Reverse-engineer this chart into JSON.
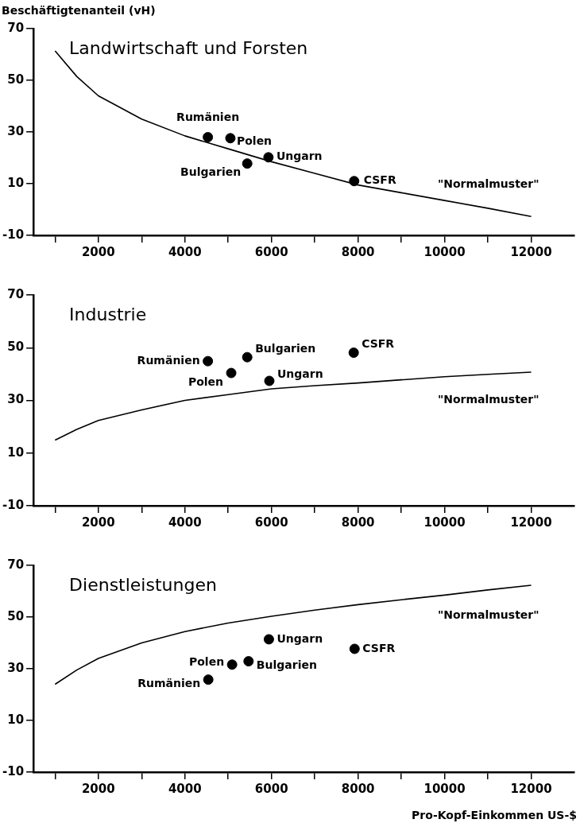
{
  "chart_data": [
    {
      "type": "scatter",
      "title": "Landwirtschaft und Forsten",
      "ylabel": "Beschäftigtenanteil (vH)",
      "xlim": [
        500,
        13000
      ],
      "ylim": [
        -10,
        70
      ],
      "xticks": [
        {
          "value": 1000,
          "label": null
        },
        2000,
        {
          "value": 3000,
          "label": null
        },
        4000,
        {
          "value": 5000,
          "label": null
        },
        6000,
        {
          "value": 7000,
          "label": null
        },
        8000,
        {
          "value": 9000,
          "label": null
        },
        10000,
        {
          "value": 11000,
          "label": null
        },
        12000
      ],
      "yticks": [
        -10,
        10,
        30,
        50,
        70
      ],
      "grid": false,
      "legend": false,
      "series": [
        {
          "name": "\"Normalmuster\"",
          "type": "line",
          "marker": "none",
          "color": "#000000",
          "x": [
            1000,
            1500,
            2000,
            3000,
            4000,
            5000,
            6000,
            7000,
            8000,
            9000,
            10000,
            11000,
            12000
          ],
          "values": [
            61.4,
            51.5,
            44,
            35,
            28.5,
            23.5,
            18.5,
            14,
            9.5,
            6.5,
            3.5,
            0.5,
            -2.7
          ]
        },
        {
          "marker": "circle",
          "color": "#000000",
          "x": [
            4530,
            5050,
            5440,
            5930,
            7910
          ],
          "values": [
            28,
            27.6,
            17.8,
            20.2,
            11
          ]
        }
      ],
      "annotations": [
        {
          "text": "Rumänien",
          "x": 4530,
          "y": 28
        },
        {
          "text": "Polen",
          "x": 5050,
          "y": 27.6
        },
        {
          "text": "Bulgarien",
          "x": 5440,
          "y": 17.8
        },
        {
          "text": "Ungarn",
          "x": 5930,
          "y": 20.2
        },
        {
          "text": "CSFR",
          "x": 7910,
          "y": 11
        }
      ]
    },
    {
      "type": "scatter",
      "title": "Industrie",
      "xlim": [
        500,
        13000
      ],
      "ylim": [
        -10,
        70
      ],
      "xticks": [
        {
          "value": 1000,
          "label": null
        },
        2000,
        {
          "value": 3000,
          "label": null
        },
        4000,
        {
          "value": 5000,
          "label": null
        },
        6000,
        {
          "value": 7000,
          "label": null
        },
        8000,
        {
          "value": 9000,
          "label": null
        },
        10000,
        {
          "value": 11000,
          "label": null
        },
        12000
      ],
      "yticks": [
        -10,
        10,
        30,
        50,
        70
      ],
      "grid": false,
      "legend": false,
      "series": [
        {
          "name": "\"Normalmuster\"",
          "type": "line",
          "marker": "none",
          "color": "#000000",
          "x": [
            1000,
            1500,
            2000,
            3000,
            4000,
            5000,
            6000,
            7000,
            8000,
            9000,
            10000,
            11000,
            12000
          ],
          "values": [
            14.9,
            19,
            22.4,
            26.4,
            30,
            32.2,
            34.4,
            35.6,
            36.6,
            37.8,
            39,
            39.9,
            40.7
          ]
        },
        {
          "marker": "circle",
          "color": "#000000",
          "x": [
            4530,
            5070,
            5440,
            5950,
            7900
          ],
          "values": [
            44.9,
            40.4,
            46.4,
            37.4,
            48.1
          ]
        }
      ],
      "annotations": [
        {
          "text": "Rumänien",
          "x": 4530,
          "y": 44.9
        },
        {
          "text": "Polen",
          "x": 5070,
          "y": 40.4
        },
        {
          "text": "Bulgarien",
          "x": 5440,
          "y": 46.4
        },
        {
          "text": "Ungarn",
          "x": 5950,
          "y": 37.4
        },
        {
          "text": "CSFR",
          "x": 7900,
          "y": 48.1
        }
      ]
    },
    {
      "type": "scatter",
      "title": "Dienstleistungen",
      "xlabel": "Pro-Kopf-Einkommen US-$",
      "xlim": [
        500,
        13000
      ],
      "ylim": [
        -10,
        70
      ],
      "xticks": [
        {
          "value": 1000,
          "label": null
        },
        2000,
        {
          "value": 3000,
          "label": null
        },
        4000,
        {
          "value": 5000,
          "label": null
        },
        6000,
        {
          "value": 7000,
          "label": null
        },
        8000,
        {
          "value": 9000,
          "label": null
        },
        10000,
        {
          "value": 11000,
          "label": null
        },
        12000
      ],
      "yticks": [
        -10,
        10,
        30,
        50,
        70
      ],
      "grid": false,
      "legend": false,
      "series": [
        {
          "name": "\"Normalmuster\"",
          "type": "line",
          "marker": "none",
          "color": "#000000",
          "x": [
            1000,
            1500,
            2000,
            3000,
            4000,
            5000,
            6000,
            7000,
            8000,
            9000,
            10000,
            11000,
            12000
          ],
          "values": [
            24,
            29.5,
            34,
            40,
            44.4,
            47.7,
            50.3,
            52.7,
            54.8,
            56.7,
            58.5,
            60.5,
            62.3
          ]
        },
        {
          "marker": "circle",
          "color": "#000000",
          "x": [
            4540,
            5090,
            5470,
            5940,
            7920
          ],
          "values": [
            25.8,
            31.6,
            32.9,
            41.4,
            37.7
          ]
        }
      ],
      "annotations": [
        {
          "text": "Rumänien",
          "x": 4540,
          "y": 25.8
        },
        {
          "text": "Polen",
          "x": 5090,
          "y": 31.6
        },
        {
          "text": "Bulgarien",
          "x": 5470,
          "y": 32.9
        },
        {
          "text": "Ungarn",
          "x": 5940,
          "y": 41.4
        },
        {
          "text": "CSFR",
          "x": 7920,
          "y": 37.7
        }
      ]
    }
  ]
}
